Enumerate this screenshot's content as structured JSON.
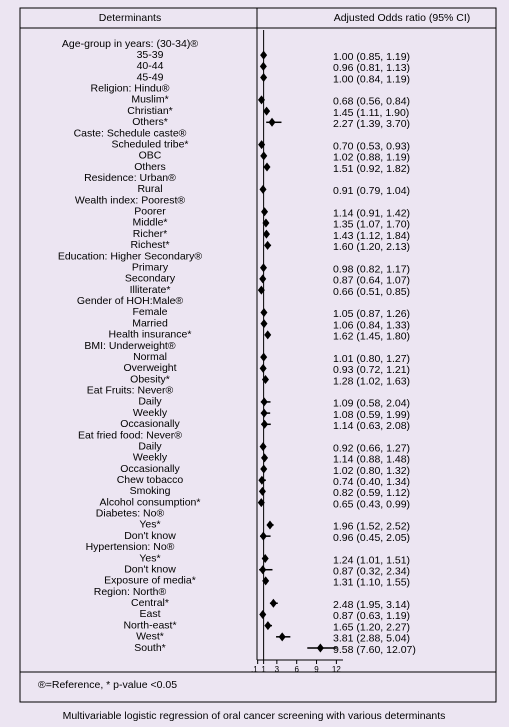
{
  "chart_data": {
    "type": "forest",
    "column_headers": [
      "Determinants",
      "Adjusted Odds ratio (95% CI)"
    ],
    "footnote": "®=Reference, * p-value <0.05",
    "caption": "Multivariable logistic regression of oral cancer screening with various determinants",
    "categories": [
      "Age-group in years: (30-34)®",
      "35-39",
      "40-44",
      "45-49",
      "Religion: Hindu®",
      "Muslim*",
      "Christian*",
      "Others*",
      "Caste: Schedule caste®",
      "Scheduled tribe*",
      "OBC",
      "Others",
      "Residence: Urban®",
      "Rural",
      "Wealth index: Poorest®",
      "Poorer",
      "Middle*",
      "Richer*",
      "Richest*",
      "Education: Higher Secondary®",
      "Primary",
      "Secondary",
      "Illiterate*",
      "Gender of HOH:Male®",
      "Female",
      "Married",
      "Health insurance*",
      "BMI: Underweight®",
      "Normal",
      "Overweight",
      "Obesity*",
      "Eat Fruits: Never®",
      "Daily",
      "Weekly",
      "Occasionally",
      "Eat fried food: Never®",
      "Daily",
      "Weekly",
      "Occasionally",
      "Chew tobacco",
      "Smoking",
      "Alcohol consumption*",
      "Diabetes: No®",
      "Yes*",
      "Don't know",
      "Hypertension: No®",
      "Yes*",
      "Don't know",
      "Exposure of media*",
      "Region: North®",
      "Central*",
      "East",
      "North-east*",
      "West*",
      "South*"
    ],
    "values": [
      null,
      1.0,
      0.96,
      1.0,
      null,
      0.68,
      1.45,
      2.27,
      null,
      0.7,
      1.02,
      1.51,
      null,
      0.91,
      null,
      1.14,
      1.35,
      1.43,
      1.6,
      null,
      0.98,
      0.87,
      0.66,
      null,
      1.05,
      1.06,
      1.62,
      null,
      1.01,
      0.93,
      1.28,
      null,
      1.09,
      1.08,
      1.14,
      null,
      0.92,
      1.14,
      1.02,
      0.74,
      0.82,
      0.65,
      null,
      1.96,
      0.96,
      null,
      1.24,
      0.87,
      1.31,
      null,
      2.48,
      0.87,
      1.65,
      3.81,
      9.58
    ],
    "lower": [
      null,
      0.85,
      0.81,
      0.84,
      null,
      0.56,
      1.11,
      1.39,
      null,
      0.53,
      0.88,
      0.92,
      null,
      0.79,
      null,
      0.91,
      1.07,
      1.12,
      1.2,
      null,
      0.82,
      0.64,
      0.51,
      null,
      0.87,
      0.84,
      1.45,
      null,
      0.8,
      0.72,
      1.02,
      null,
      0.58,
      0.59,
      0.63,
      null,
      0.66,
      0.88,
      0.8,
      0.4,
      0.59,
      0.43,
      null,
      1.52,
      0.45,
      null,
      1.01,
      0.32,
      1.1,
      null,
      1.95,
      0.63,
      1.2,
      2.88,
      7.6
    ],
    "upper": [
      null,
      1.19,
      1.13,
      1.19,
      null,
      0.84,
      1.9,
      3.7,
      null,
      0.93,
      1.19,
      1.82,
      null,
      1.04,
      null,
      1.42,
      1.7,
      1.84,
      2.13,
      null,
      1.17,
      1.07,
      0.85,
      null,
      1.26,
      1.33,
      1.8,
      null,
      1.27,
      1.21,
      1.63,
      null,
      2.04,
      1.99,
      2.08,
      null,
      1.27,
      1.48,
      1.32,
      1.34,
      1.12,
      0.99,
      null,
      2.52,
      2.05,
      null,
      1.51,
      2.34,
      1.55,
      null,
      3.14,
      1.19,
      2.27,
      5.04,
      12.07
    ],
    "value_labels": [
      null,
      "1.00 (0.85, 1.19)",
      "0.96 (0.81, 1.13)",
      "1.00 (0.84, 1.19)",
      null,
      "0.68 (0.56, 0.84)",
      "1.45 (1.11, 1.90)",
      "2.27 (1.39, 3.70)",
      null,
      "0.70 (0.53, 0.93)",
      "1.02 (0.88, 1.19)",
      "1.51 (0.92, 1.82)",
      null,
      "0.91 (0.79, 1.04)",
      null,
      "1.14 (0.91, 1.42)",
      "1.35 (1.07, 1.70)",
      "1.43 (1.12, 1.84)",
      "1.60 (1.20, 2.13)",
      null,
      "0.98 (0.82, 1.17)",
      "0.87 (0.64, 1.07)",
      "0.66 (0.51, 0.85)",
      null,
      "1.05 (0.87, 1.26)",
      "1.06 (0.84, 1.33)",
      "1.62 (1.45, 1.80)",
      null,
      "1.01 (0.80, 1.27)",
      "0.93 (0.72, 1.21)",
      "1.28 (1.02, 1.63)",
      null,
      "1.09 (0.58, 2.04)",
      "1.08 (0.59, 1.99)",
      "1.14 (0.63, 2.08)",
      null,
      "0.92 (0.66, 1.27)",
      "1.14 (0.88, 1.48)",
      "1.02 (0.80, 1.32)",
      "0.74 (0.40, 1.34)",
      "0.82 (0.59, 1.12)",
      "0.65 (0.43, 0.99)",
      null,
      "1.96 (1.52, 2.52)",
      "0.96 (0.45, 2.05)",
      null,
      "1.24 (1.01, 1.51)",
      "0.87 (0.32, 2.34)",
      "1.31 (1.10, 1.55)",
      null,
      "2.48 (1.95, 3.14)",
      "0.87 (0.63, 1.19)",
      "1.65 (1.20, 2.27)",
      "3.81 (2.88, 5.04)",
      "9.58 (7.60, 12.07)"
    ],
    "color": "#000000",
    "xlim": [
      0,
      13
    ],
    "xticks": [
      {
        "value": 0.1,
        "label": ".1"
      },
      1,
      3,
      6,
      9,
      12
    ],
    "reference_line": 1
  }
}
